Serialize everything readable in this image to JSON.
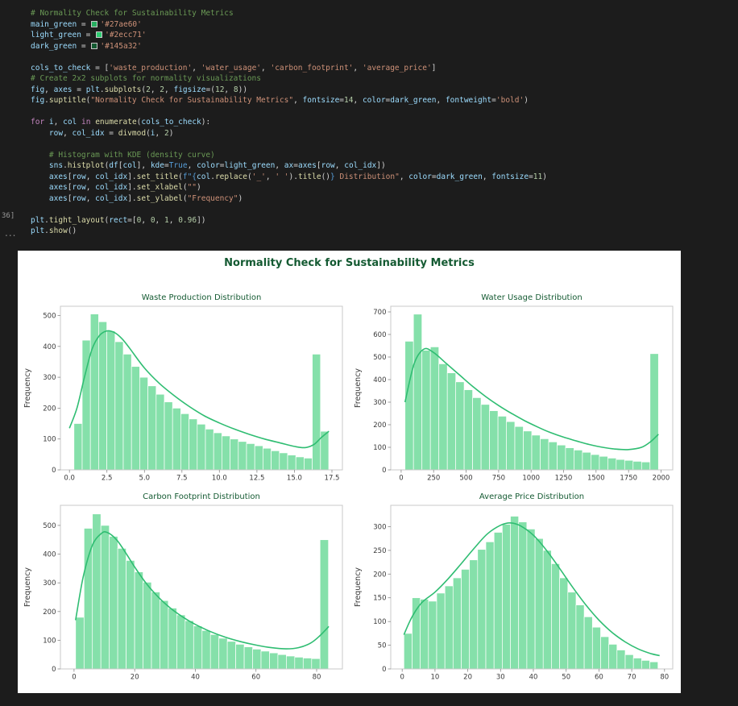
{
  "editor": {
    "execution_count": "36]",
    "collapse_indicator": "...",
    "code_lines": [
      [
        [
          "cm",
          "# Normality Check for Sustainability Metrics"
        ]
      ],
      [
        [
          "v",
          "main_green"
        ],
        [
          "o",
          " = "
        ],
        [
          "sw",
          "#27ae60"
        ],
        [
          "s",
          "'#27ae60'"
        ]
      ],
      [
        [
          "v",
          "light_green"
        ],
        [
          "o",
          " = "
        ],
        [
          "sw",
          "#2ecc71"
        ],
        [
          "s",
          "'#2ecc71'"
        ]
      ],
      [
        [
          "v",
          "dark_green"
        ],
        [
          "o",
          " = "
        ],
        [
          "sw",
          "#145a32"
        ],
        [
          "s",
          "'#145a32'"
        ]
      ],
      [],
      [
        [
          "v",
          "cols_to_check"
        ],
        [
          "o",
          " = ["
        ],
        [
          "s",
          "'waste_production'"
        ],
        [
          "o",
          ", "
        ],
        [
          "s",
          "'water_usage'"
        ],
        [
          "o",
          ", "
        ],
        [
          "s",
          "'carbon_footprint'"
        ],
        [
          "o",
          ", "
        ],
        [
          "s",
          "'average_price'"
        ],
        [
          "o",
          "]"
        ]
      ],
      [
        [
          "cm",
          "# Create 2x2 subplots for normality visualizations"
        ]
      ],
      [
        [
          "v",
          "fig"
        ],
        [
          "o",
          ", "
        ],
        [
          "v",
          "axes"
        ],
        [
          "o",
          " = "
        ],
        [
          "v",
          "plt"
        ],
        [
          "o",
          "."
        ],
        [
          "f",
          "subplots"
        ],
        [
          "o",
          "("
        ],
        [
          "n",
          "2"
        ],
        [
          "o",
          ", "
        ],
        [
          "n",
          "2"
        ],
        [
          "o",
          ", "
        ],
        [
          "v",
          "figsize"
        ],
        [
          "o",
          "=("
        ],
        [
          "n",
          "12"
        ],
        [
          "o",
          ", "
        ],
        [
          "n",
          "8"
        ],
        [
          "o",
          "))"
        ]
      ],
      [
        [
          "v",
          "fig"
        ],
        [
          "o",
          "."
        ],
        [
          "f",
          "suptitle"
        ],
        [
          "o",
          "("
        ],
        [
          "s",
          "\"Normality Check for Sustainability Metrics\""
        ],
        [
          "o",
          ", "
        ],
        [
          "v",
          "fontsize"
        ],
        [
          "o",
          "="
        ],
        [
          "n",
          "14"
        ],
        [
          "o",
          ", "
        ],
        [
          "v",
          "color"
        ],
        [
          "o",
          "="
        ],
        [
          "v",
          "dark_green"
        ],
        [
          "o",
          ", "
        ],
        [
          "v",
          "fontweight"
        ],
        [
          "o",
          "="
        ],
        [
          "s",
          "'bold'"
        ],
        [
          "o",
          ")"
        ]
      ],
      [],
      [
        [
          "k",
          "for"
        ],
        [
          "o",
          " "
        ],
        [
          "v",
          "i"
        ],
        [
          "o",
          ", "
        ],
        [
          "v",
          "col"
        ],
        [
          "o",
          " "
        ],
        [
          "k",
          "in"
        ],
        [
          "o",
          " "
        ],
        [
          "f",
          "enumerate"
        ],
        [
          "o",
          "("
        ],
        [
          "v",
          "cols_to_check"
        ],
        [
          "o",
          "):"
        ]
      ],
      [
        [
          "o",
          "    "
        ],
        [
          "v",
          "row"
        ],
        [
          "o",
          ", "
        ],
        [
          "v",
          "col_idx"
        ],
        [
          "o",
          " = "
        ],
        [
          "f",
          "divmod"
        ],
        [
          "o",
          "("
        ],
        [
          "v",
          "i"
        ],
        [
          "o",
          ", "
        ],
        [
          "n",
          "2"
        ],
        [
          "o",
          ")"
        ]
      ],
      [],
      [
        [
          "cm",
          "    # Histogram with KDE (density curve)"
        ]
      ],
      [
        [
          "o",
          "    "
        ],
        [
          "v",
          "sns"
        ],
        [
          "o",
          "."
        ],
        [
          "f",
          "histplot"
        ],
        [
          "o",
          "("
        ],
        [
          "v",
          "df"
        ],
        [
          "o",
          "["
        ],
        [
          "v",
          "col"
        ],
        [
          "o",
          "], "
        ],
        [
          "v",
          "kde"
        ],
        [
          "o",
          "="
        ],
        [
          "b",
          "True"
        ],
        [
          "o",
          ", "
        ],
        [
          "v",
          "color"
        ],
        [
          "o",
          "="
        ],
        [
          "v",
          "light_green"
        ],
        [
          "o",
          ", "
        ],
        [
          "v",
          "ax"
        ],
        [
          "o",
          "="
        ],
        [
          "v",
          "axes"
        ],
        [
          "o",
          "["
        ],
        [
          "v",
          "row"
        ],
        [
          "o",
          ", "
        ],
        [
          "v",
          "col_idx"
        ],
        [
          "o",
          "])"
        ]
      ],
      [
        [
          "o",
          "    "
        ],
        [
          "v",
          "axes"
        ],
        [
          "o",
          "["
        ],
        [
          "v",
          "row"
        ],
        [
          "o",
          ", "
        ],
        [
          "v",
          "col_idx"
        ],
        [
          "o",
          "]."
        ],
        [
          "f",
          "set_title"
        ],
        [
          "o",
          "("
        ],
        [
          "b",
          "f\"{"
        ],
        [
          "v",
          "col"
        ],
        [
          "o",
          "."
        ],
        [
          "f",
          "replace"
        ],
        [
          "o",
          "("
        ],
        [
          "s",
          "'_'"
        ],
        [
          "o",
          ", "
        ],
        [
          "s",
          "' '"
        ],
        [
          "o",
          ")."
        ],
        [
          "f",
          "title"
        ],
        [
          "o",
          "()"
        ],
        [
          "b",
          "}"
        ],
        [
          "s",
          " Distribution\""
        ],
        [
          "o",
          ", "
        ],
        [
          "v",
          "color"
        ],
        [
          "o",
          "="
        ],
        [
          "v",
          "dark_green"
        ],
        [
          "o",
          ", "
        ],
        [
          "v",
          "fontsize"
        ],
        [
          "o",
          "="
        ],
        [
          "n",
          "11"
        ],
        [
          "o",
          ")"
        ]
      ],
      [
        [
          "o",
          "    "
        ],
        [
          "v",
          "axes"
        ],
        [
          "o",
          "["
        ],
        [
          "v",
          "row"
        ],
        [
          "o",
          ", "
        ],
        [
          "v",
          "col_idx"
        ],
        [
          "o",
          "]."
        ],
        [
          "f",
          "set_xlabel"
        ],
        [
          "o",
          "("
        ],
        [
          "s",
          "\"\""
        ],
        [
          "o",
          ")"
        ]
      ],
      [
        [
          "o",
          "    "
        ],
        [
          "v",
          "axes"
        ],
        [
          "o",
          "["
        ],
        [
          "v",
          "row"
        ],
        [
          "o",
          ", "
        ],
        [
          "v",
          "col_idx"
        ],
        [
          "o",
          "]."
        ],
        [
          "f",
          "set_ylabel"
        ],
        [
          "o",
          "("
        ],
        [
          "s",
          "\"Frequency\""
        ],
        [
          "o",
          ")"
        ]
      ],
      [],
      [
        [
          "v",
          "plt"
        ],
        [
          "o",
          "."
        ],
        [
          "f",
          "tight_layout"
        ],
        [
          "o",
          "("
        ],
        [
          "v",
          "rect"
        ],
        [
          "o",
          "=["
        ],
        [
          "n",
          "0"
        ],
        [
          "o",
          ", "
        ],
        [
          "n",
          "0"
        ],
        [
          "o",
          ", "
        ],
        [
          "n",
          "1"
        ],
        [
          "o",
          ", "
        ],
        [
          "n",
          "0.96"
        ],
        [
          "o",
          "])"
        ]
      ],
      [
        [
          "v",
          "plt"
        ],
        [
          "o",
          "."
        ],
        [
          "f",
          "show"
        ],
        [
          "o",
          "()"
        ]
      ]
    ]
  },
  "figure": {
    "suptitle": "Normality Check for Sustainability Metrics",
    "suptitle_color": "#145a32"
  },
  "chart_style": {
    "bar_fill": "#85e0aa",
    "bar_edge": "#ffffff",
    "kde_color": "#2fbd72",
    "spine_color": "#c8c8c8",
    "tick_mark_color": "#8a8a8a",
    "tick_color": "#3a3a3a",
    "title_color": "#145a32",
    "label_color": "#3a3a3a"
  },
  "chart_data": [
    {
      "type": "bar",
      "subtype": "histogram+kde",
      "title": "Waste Production Distribution",
      "ylabel": "Frequency",
      "xlim": [
        -0.6,
        18.2
      ],
      "ylim": [
        0,
        530
      ],
      "xticks": [
        0,
        2.5,
        5,
        7.5,
        10,
        12.5,
        15,
        17.5
      ],
      "xtick_labels": [
        "0.0",
        "2.5",
        "5.0",
        "7.5",
        "10.0",
        "12.5",
        "15.0",
        "17.5"
      ],
      "yticks": [
        0,
        100,
        200,
        300,
        400,
        500
      ],
      "bins": {
        "start": 0.3,
        "width": 0.548,
        "values": [
          150,
          420,
          505,
          480,
          450,
          415,
          375,
          335,
          300,
          272,
          245,
          220,
          200,
          182,
          165,
          148,
          132,
          120,
          110,
          100,
          92,
          85,
          78,
          70,
          62,
          55,
          48,
          42,
          38,
          375,
          125
        ]
      },
      "kde": {
        "x": [
          0,
          0.5,
          1,
          1.5,
          2,
          2.5,
          3,
          3.5,
          4,
          5,
          6,
          7,
          8,
          9,
          10,
          11,
          12,
          13,
          14,
          15,
          15.7,
          16.3,
          16.8,
          17.3
        ],
        "y": [
          135,
          200,
          300,
          390,
          435,
          450,
          445,
          425,
          395,
          330,
          280,
          240,
          205,
          175,
          152,
          132,
          115,
          100,
          88,
          76,
          72,
          82,
          105,
          125
        ]
      }
    },
    {
      "type": "bar",
      "subtype": "histogram+kde",
      "title": "Water Usage Distribution",
      "ylabel": "Frequency",
      "xlim": [
        -80,
        2090
      ],
      "ylim": [
        0,
        725
      ],
      "xticks": [
        0,
        250,
        500,
        750,
        1000,
        1250,
        1500,
        1750,
        2000
      ],
      "xtick_labels": [
        "0",
        "250",
        "500",
        "750",
        "1000",
        "1250",
        "1500",
        "1750",
        "2000"
      ],
      "yticks": [
        0,
        100,
        200,
        300,
        400,
        500,
        600,
        700
      ],
      "bins": {
        "start": 30,
        "width": 65,
        "values": [
          570,
          690,
          530,
          545,
          470,
          430,
          390,
          355,
          320,
          290,
          262,
          238,
          214,
          192,
          172,
          154,
          138,
          124,
          110,
          98,
          88,
          78,
          68,
          60,
          52,
          46,
          42,
          38,
          35,
          515
        ]
      },
      "kde": {
        "x": [
          30,
          100,
          175,
          250,
          350,
          450,
          550,
          650,
          750,
          850,
          950,
          1050,
          1150,
          1250,
          1350,
          1450,
          1550,
          1650,
          1750,
          1850,
          1920,
          1980
        ],
        "y": [
          300,
          470,
          535,
          520,
          470,
          420,
          370,
          325,
          285,
          250,
          218,
          190,
          165,
          145,
          128,
          112,
          100,
          92,
          90,
          100,
          125,
          158
        ]
      }
    },
    {
      "type": "bar",
      "subtype": "histogram+kde",
      "title": "Carbon Footprint Distribution",
      "ylabel": "Frequency",
      "xlim": [
        -4.5,
        88.5
      ],
      "ylim": [
        0,
        570
      ],
      "xticks": [
        0,
        20,
        40,
        60,
        80
      ],
      "xtick_labels": [
        "0",
        "20",
        "40",
        "60",
        "80"
      ],
      "yticks": [
        0,
        100,
        200,
        300,
        400,
        500
      ],
      "bins": {
        "start": 0.5,
        "width": 2.78,
        "values": [
          180,
          490,
          540,
          500,
          462,
          420,
          378,
          338,
          302,
          268,
          238,
          212,
          188,
          168,
          150,
          134,
          120,
          107,
          96,
          86,
          77,
          69,
          62,
          56,
          50,
          45,
          41,
          38,
          36,
          450
        ]
      },
      "kde": {
        "x": [
          0.5,
          3,
          6,
          9,
          11,
          14,
          17,
          20,
          24,
          28,
          32,
          36,
          40,
          45,
          50,
          55,
          60,
          65,
          70,
          74,
          78,
          81,
          84
        ],
        "y": [
          170,
          320,
          430,
          472,
          475,
          450,
          405,
          355,
          295,
          248,
          210,
          180,
          155,
          130,
          110,
          95,
          83,
          74,
          70,
          74,
          90,
          115,
          148
        ]
      }
    },
    {
      "type": "bar",
      "subtype": "histogram+kde",
      "title": "Average Price Distribution",
      "ylabel": "Frequency",
      "xlim": [
        -3.5,
        82.5
      ],
      "ylim": [
        0,
        345
      ],
      "xticks": [
        0,
        10,
        20,
        30,
        40,
        50,
        60,
        70,
        80
      ],
      "xtick_labels": [
        "0",
        "10",
        "20",
        "30",
        "40",
        "50",
        "60",
        "70",
        "80"
      ],
      "yticks": [
        0,
        50,
        100,
        150,
        200,
        250,
        300
      ],
      "bins": {
        "start": 0.5,
        "width": 2.5,
        "values": [
          75,
          150,
          147,
          143,
          160,
          175,
          192,
          210,
          230,
          252,
          268,
          288,
          305,
          322,
          310,
          295,
          275,
          250,
          222,
          192,
          162,
          135,
          110,
          88,
          68,
          52,
          40,
          30,
          23,
          18,
          15
        ]
      },
      "kde": {
        "x": [
          0.5,
          3,
          6,
          10,
          14,
          18,
          22,
          26,
          30,
          33,
          36,
          40,
          44,
          48,
          52,
          56,
          60,
          64,
          68,
          72,
          76,
          78.5
        ],
        "y": [
          72,
          110,
          140,
          162,
          190,
          222,
          255,
          285,
          303,
          308,
          302,
          282,
          250,
          212,
          172,
          135,
          103,
          77,
          57,
          42,
          32,
          28
        ]
      }
    }
  ]
}
